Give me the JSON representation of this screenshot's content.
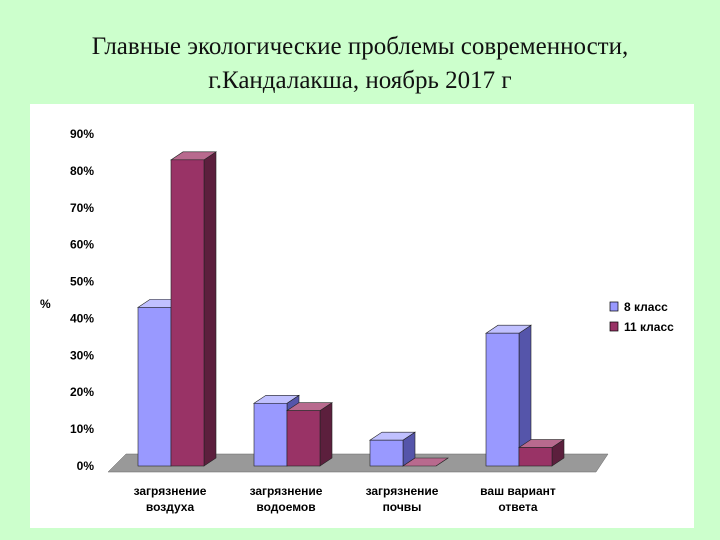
{
  "slide": {
    "title_line1": "Главные экологические проблемы современности,",
    "title_line2": "г.Кандалакша, ноябрь 2017 г"
  },
  "chart_data": {
    "type": "bar",
    "style": "3d-clustered-column",
    "ylabel": "%",
    "ylim": [
      0,
      90
    ],
    "yticks": [
      0,
      10,
      20,
      30,
      40,
      50,
      60,
      70,
      80,
      90
    ],
    "ytick_labels": [
      "0%",
      "10%",
      "20%",
      "30%",
      "40%",
      "50%",
      "60%",
      "70%",
      "80%",
      "90%"
    ],
    "categories": [
      [
        "загрязнение",
        "воздуха"
      ],
      [
        "загрязнение",
        "водоемов"
      ],
      [
        "загрязнение",
        "почвы"
      ],
      [
        "ваш вариант",
        "ответа"
      ]
    ],
    "series": [
      {
        "name": "8 класс",
        "values": [
          43,
          17,
          7,
          36
        ],
        "color": "#9999ff",
        "side_color": "#5555aa",
        "top_color": "#c0c0ff"
      },
      {
        "name": "11 класс",
        "values": [
          83,
          15,
          0,
          5
        ],
        "color": "#993366",
        "side_color": "#5c1f3d",
        "top_color": "#b86a8e"
      }
    ],
    "legend_position": "right",
    "grid": false,
    "floor_color": "#999999"
  }
}
